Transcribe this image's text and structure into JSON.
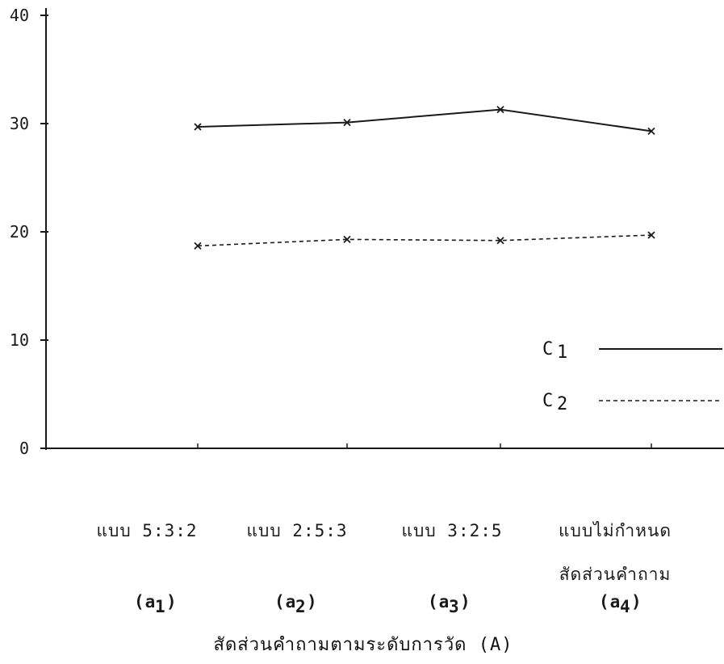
{
  "chart_data": {
    "type": "line",
    "categories": [
      "แบบ 5:3:2",
      "แบบ 2:5:3",
      "แบบ 3:2:5",
      "แบบไม่กำหนด"
    ],
    "category_second_line": [
      "",
      "",
      "",
      "สัดส่วนคำถาม"
    ],
    "category_codes": [
      {
        "base": "(a",
        "sub": "1",
        "close": ")"
      },
      {
        "base": "(a",
        "sub": "2",
        "close": ")"
      },
      {
        "base": "(a",
        "sub": "3",
        "close": ")"
      },
      {
        "base": "(a",
        "sub": "4",
        "close": ")"
      }
    ],
    "series": [
      {
        "name": "C",
        "name_sub": "1",
        "style": "solid",
        "values": [
          29.7,
          30.1,
          31.3,
          29.3
        ]
      },
      {
        "name": "C",
        "name_sub": "2",
        "style": "dashed",
        "values": [
          18.7,
          19.3,
          19.2,
          19.7
        ]
      }
    ],
    "yticks": [
      0,
      10,
      20,
      30,
      40
    ],
    "ytick_labels": [
      "0",
      "10",
      "20",
      "30",
      "40"
    ],
    "ylim": [
      0,
      42
    ],
    "xlabel": "สัดส่วนคำถามตามระดับการวัด (A)",
    "ylabel": "",
    "title": "",
    "grid": false,
    "legend_position": "right",
    "colors": {
      "line": "#1a1a1a",
      "background": "#ffffff"
    }
  }
}
